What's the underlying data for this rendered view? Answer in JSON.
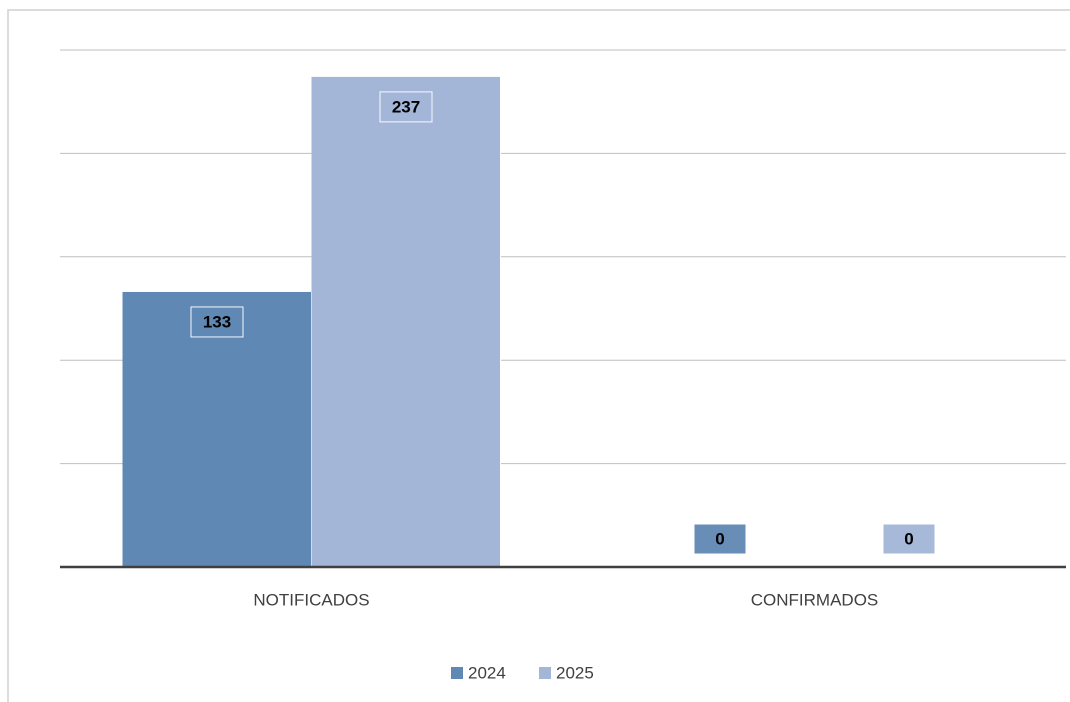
{
  "chart_data": {
    "type": "bar",
    "categories": [
      "NOTIFICADOS",
      "CONFIRMADOS"
    ],
    "series": [
      {
        "name": "2024",
        "color": "#6088b5",
        "values": [
          133,
          0
        ]
      },
      {
        "name": "2025",
        "color": "#a3b6d8",
        "values": [
          237,
          0
        ]
      }
    ],
    "ylim": [
      0,
      250
    ],
    "yticks": [
      0,
      50,
      100,
      150,
      200,
      250
    ],
    "grid": true,
    "legend": "bottom"
  }
}
